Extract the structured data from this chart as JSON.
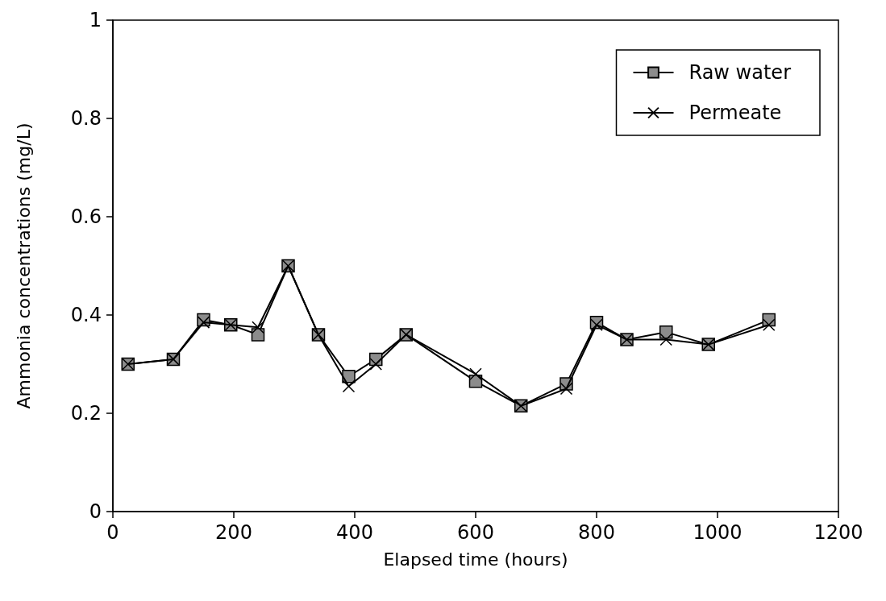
{
  "chart_data": {
    "type": "line",
    "xlabel": "Elapsed time (hours)",
    "ylabel": "Ammonia concentrations (mg/L)",
    "xlim": [
      0,
      1200
    ],
    "xticks": [
      0,
      200,
      400,
      600,
      800,
      1000,
      1200
    ],
    "ylim": [
      0,
      1
    ],
    "yticks": [
      0,
      0.2,
      0.4,
      0.6,
      0.8,
      1
    ],
    "grid": false,
    "legend": "top right",
    "line_style": "solid",
    "series": [
      {
        "name": "Raw water",
        "color": "#000000",
        "marker": "square",
        "x": [
          25,
          100,
          150,
          195,
          240,
          290,
          340,
          390,
          435,
          485,
          600,
          675,
          750,
          800,
          850,
          915,
          985,
          1085
        ],
        "values": [
          0.3,
          0.31,
          0.39,
          0.38,
          0.36,
          0.5,
          0.36,
          0.275,
          0.31,
          0.36,
          0.265,
          0.215,
          0.26,
          0.385,
          0.35,
          0.365,
          0.34,
          0.39
        ]
      },
      {
        "name": "Permeate",
        "color": "#000000",
        "marker": "cross",
        "x": [
          25,
          100,
          150,
          195,
          240,
          290,
          340,
          390,
          435,
          485,
          600,
          675,
          750,
          800,
          850,
          915,
          985,
          1085
        ],
        "values": [
          0.3,
          0.31,
          0.385,
          0.38,
          0.375,
          0.5,
          0.36,
          0.255,
          0.3,
          0.36,
          0.28,
          0.215,
          0.25,
          0.38,
          0.35,
          0.35,
          0.34,
          0.38
        ]
      }
    ]
  }
}
